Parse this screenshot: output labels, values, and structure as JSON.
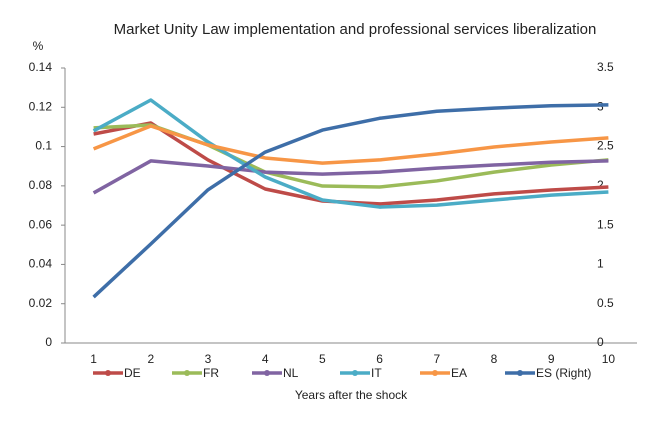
{
  "chart_data": {
    "type": "line",
    "title": "Market Unity Law implementation and professional services liberalization",
    "y_label": "%",
    "x_label": "Years after the shock",
    "categories": [
      "1",
      "2",
      "3",
      "4",
      "5",
      "6",
      "7",
      "8",
      "9",
      "10"
    ],
    "ylim": [
      0,
      0.14
    ],
    "yticks": [
      0,
      0.02,
      0.04,
      0.06,
      0.08,
      0.1,
      0.12,
      0.14
    ],
    "y2lim": [
      0,
      3.5
    ],
    "y2ticks": [
      0,
      0.5,
      1,
      1.5,
      2,
      2.5,
      3,
      3.5
    ],
    "legend": "bottom",
    "series": [
      {
        "name": "DE",
        "color": "#be4b48",
        "values": [
          0.1064,
          0.112,
          0.0932,
          0.0784,
          0.0723,
          0.0708,
          0.0728,
          0.0759,
          0.0779,
          0.0794
        ]
      },
      {
        "name": "FR",
        "color": "#9bbb59",
        "values": [
          0.1095,
          0.111,
          0.1008,
          0.087,
          0.0799,
          0.0794,
          0.0825,
          0.087,
          0.0906,
          0.0932
        ]
      },
      {
        "name": "NL",
        "color": "#8064a2",
        "values": [
          0.0764,
          0.0927,
          0.0901,
          0.087,
          0.086,
          0.087,
          0.089,
          0.0906,
          0.092,
          0.0927
        ]
      },
      {
        "name": "IT",
        "color": "#4bacc6",
        "values": [
          0.108,
          0.1237,
          0.1023,
          0.0845,
          0.0728,
          0.0692,
          0.0702,
          0.0728,
          0.0753,
          0.0769
        ]
      },
      {
        "name": "EA",
        "color": "#f79646",
        "values": [
          0.0988,
          0.1105,
          0.1008,
          0.0942,
          0.0916,
          0.0932,
          0.0962,
          0.0998,
          0.1023,
          0.1044
        ]
      },
      {
        "name": "ES (Right)",
        "color": "#3e6ea8",
        "axis": "y2",
        "values": [
          0.585,
          1.26,
          1.95,
          2.43,
          2.71,
          2.86,
          2.95,
          2.99,
          3.02,
          3.03
        ]
      }
    ]
  }
}
